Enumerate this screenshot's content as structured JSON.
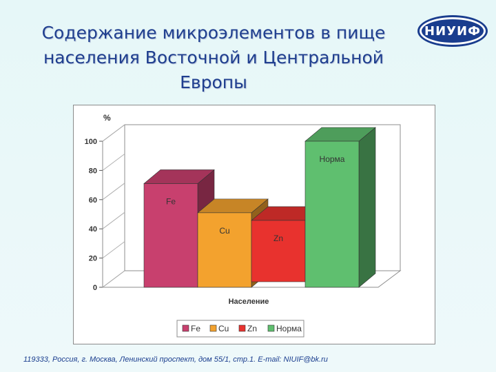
{
  "title": {
    "line1": "Содержание микроэлементов в пище",
    "line2": "населения Восточной и Центральной",
    "line3": "Европы"
  },
  "logo": {
    "text": "НИУИФ",
    "colors": {
      "primary": "#1a3d8e"
    }
  },
  "footer": {
    "text": "119333, Россия, г. Москва, Ленинский проспект, дом 55/1, стр.1. E-mail: NIUIF@bk.ru"
  },
  "chart_data": {
    "type": "bar",
    "style": "3d",
    "categories": [
      "Fe",
      "Cu",
      "Zn",
      "Норма"
    ],
    "values": [
      71,
      51,
      42,
      100
    ],
    "colors": [
      "#c8406e",
      "#f3a22e",
      "#e8322e",
      "#5fbf6f"
    ],
    "bar_labels": [
      "Fe",
      "Cu",
      "Zn",
      "Норма"
    ],
    "xlabel": "Население",
    "ylabel": "%",
    "ylim": [
      0,
      100
    ],
    "yticks": [
      "0",
      "20",
      "40",
      "60",
      "80",
      "100"
    ],
    "grid": false,
    "legend": {
      "position": "bottom",
      "entries": [
        "Fe",
        "Cu",
        "Zn",
        "Норма"
      ]
    }
  }
}
